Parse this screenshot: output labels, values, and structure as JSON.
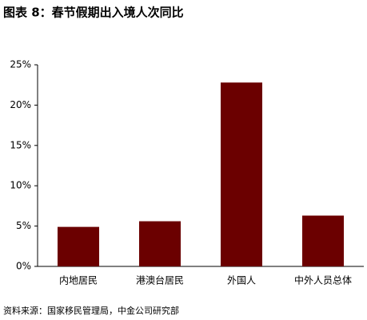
{
  "chart_data": {
    "type": "bar",
    "title": "图表 8：春节假期出入境人次同比",
    "categories": [
      "内地居民",
      "港澳台居民",
      "外国人",
      "中外人员总体"
    ],
    "values": [
      4.9,
      5.6,
      22.8,
      6.3
    ],
    "color": "#6b0000",
    "ylim": [
      0,
      25
    ],
    "yticks": [
      {
        "value": 0,
        "label": "0%"
      },
      {
        "value": 5,
        "label": "5%"
      },
      {
        "value": 10,
        "label": "10%"
      },
      {
        "value": 15,
        "label": "15%"
      },
      {
        "value": 20,
        "label": "20%"
      },
      {
        "value": 25,
        "label": "25%"
      }
    ],
    "grid": false,
    "source": "资料来源：国家移民管理局，中金公司研究部"
  }
}
